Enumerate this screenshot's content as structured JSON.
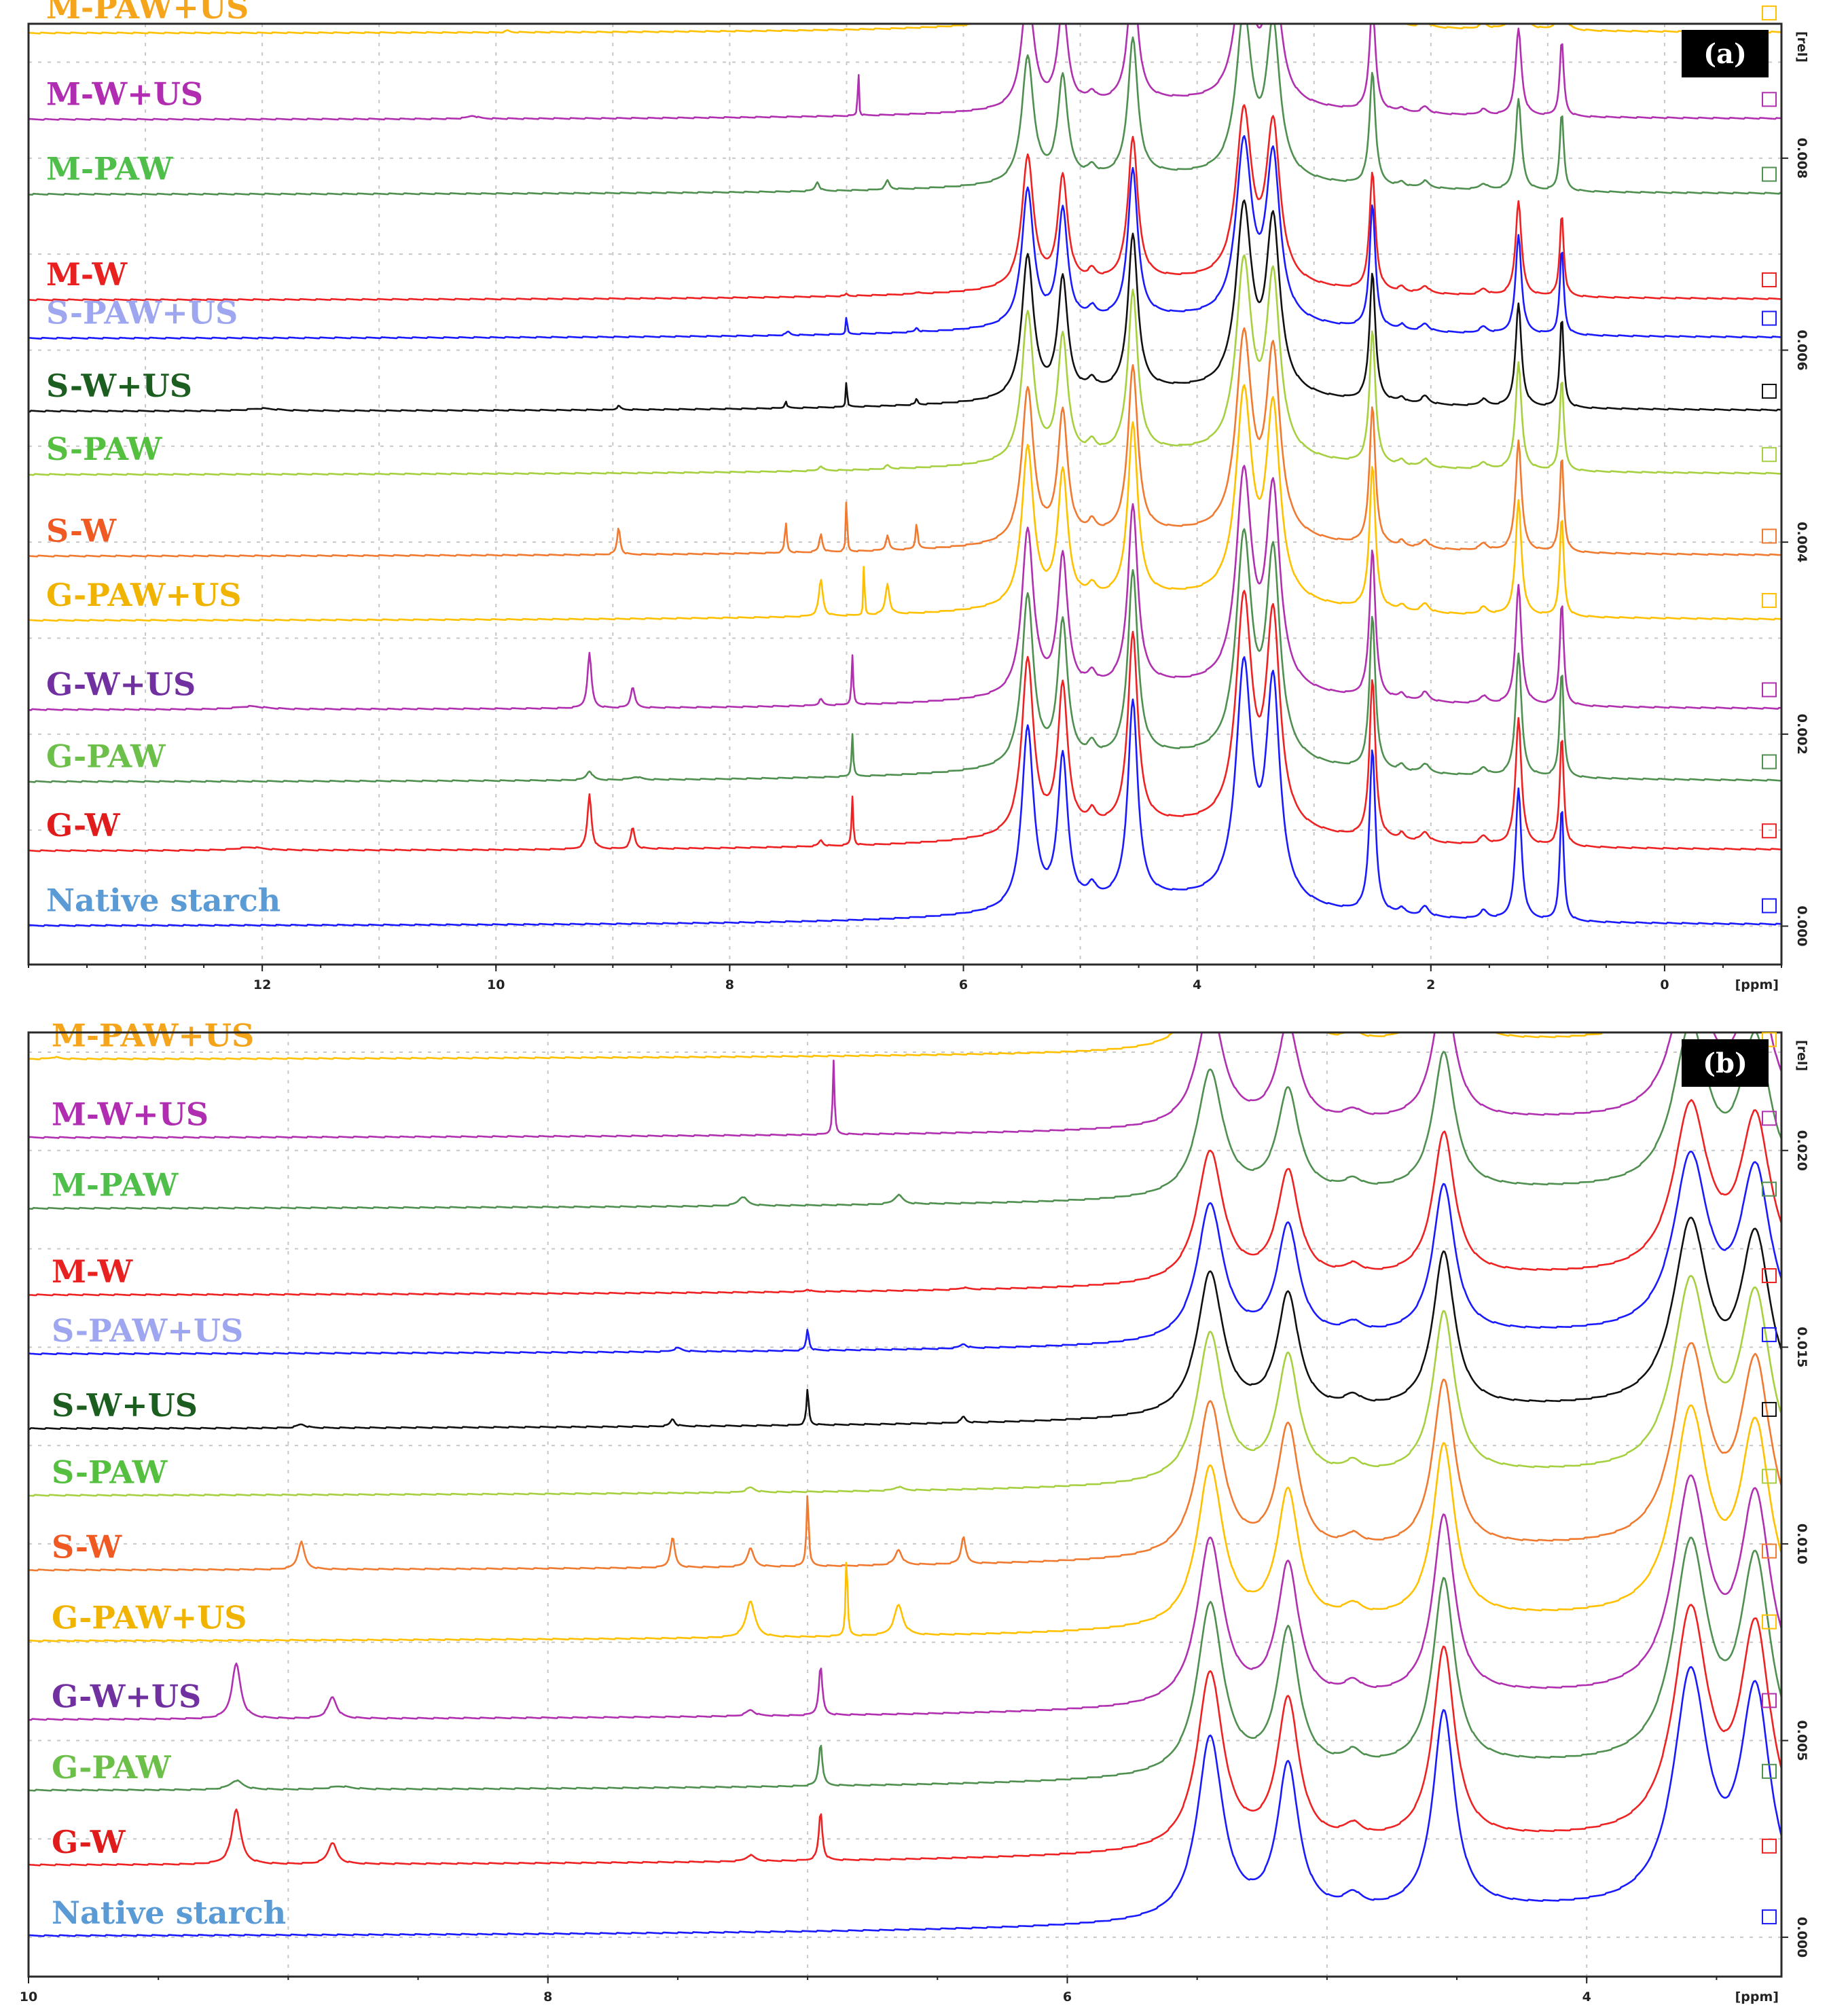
{
  "chart_data": [
    {
      "type": "line",
      "panel_label": "(a)",
      "xlabel": "[ppm]",
      "ylabel": "[rel]",
      "x_ticks": [
        12,
        10,
        8,
        6,
        4,
        2,
        0
      ],
      "x_tick_labels": [
        "12",
        "10",
        "8",
        "6",
        "4",
        "2",
        "0"
      ],
      "xlim": [
        14.0,
        -1.0
      ],
      "y_ticks": [
        0.0,
        0.002,
        0.004,
        0.006,
        0.008
      ],
      "y_tick_labels": [
        "0.000",
        "0.002",
        "0.004",
        "0.006",
        "0.008"
      ],
      "ylim": [
        -0.0004,
        0.0094
      ],
      "grid": true,
      "series": [
        {
          "name": "Native starch",
          "color": "#1a1aff",
          "label_color": "#5b9bd5",
          "offset": 0.0
        },
        {
          "name": "G-W",
          "color": "#ee2222",
          "label_color": "#e01b1b",
          "offset": 0.00078
        },
        {
          "name": "G-PAW",
          "color": "#4f8f4f",
          "label_color": "#6cc04a",
          "offset": 0.0015
        },
        {
          "name": "G-W+US",
          "color": "#b030b0",
          "label_color": "#7030a0",
          "offset": 0.00225
        },
        {
          "name": "G-PAW+US",
          "color": "#ffc000",
          "label_color": "#f0b400",
          "offset": 0.00318
        },
        {
          "name": "S-W",
          "color": "#f07a30",
          "label_color": "#f05a22",
          "offset": 0.00385
        },
        {
          "name": "S-PAW",
          "color": "#a6d040",
          "label_color": "#55c040",
          "offset": 0.0047
        },
        {
          "name": "S-W+US",
          "color": "#111111",
          "label_color": "#1b5e20",
          "offset": 0.00536
        },
        {
          "name": "S-PAW+US",
          "color": "#1a1aff",
          "label_color": "#9da6ee",
          "offset": 0.00612
        },
        {
          "name": "M-W",
          "color": "#ee2222",
          "label_color": "#e82020",
          "offset": 0.00652
        },
        {
          "name": "M-PAW",
          "color": "#4f8f4f",
          "label_color": "#4fbe4a",
          "offset": 0.00762
        },
        {
          "name": "M-W+US",
          "color": "#b030b0",
          "label_color": "#b02cb0",
          "offset": 0.0084
        },
        {
          "name": "M-PAW+US",
          "color": "#ffc000",
          "label_color": "#f5a51c",
          "offset": 0.0093
        }
      ]
    },
    {
      "type": "line",
      "panel_label": "(b)",
      "xlabel": "[ppm]",
      "ylabel": "[rel]",
      "x_ticks": [
        10,
        8,
        6,
        4
      ],
      "x_tick_labels": [
        "10",
        "8",
        "6",
        "4"
      ],
      "xlim": [
        10.0,
        3.25
      ],
      "y_ticks": [
        0.0,
        0.005,
        0.01,
        0.015,
        0.02
      ],
      "y_tick_labels": [
        "0.000",
        "0.005",
        "0.010",
        "0.015",
        "0.020"
      ],
      "ylim": [
        -0.001,
        0.023
      ],
      "grid": true,
      "series": [
        {
          "name": "Native starch",
          "color": "#1a1aff",
          "label_color": "#5b9bd5",
          "offset": 0.0
        },
        {
          "name": "G-W",
          "color": "#ee2222",
          "label_color": "#e01b1b",
          "offset": 0.0018
        },
        {
          "name": "G-PAW",
          "color": "#4f8f4f",
          "label_color": "#6cc04a",
          "offset": 0.0037
        },
        {
          "name": "G-W+US",
          "color": "#b030b0",
          "label_color": "#7030a0",
          "offset": 0.0055
        },
        {
          "name": "G-PAW+US",
          "color": "#ffc000",
          "label_color": "#f0b400",
          "offset": 0.0075
        },
        {
          "name": "S-W",
          "color": "#f07a30",
          "label_color": "#f05a22",
          "offset": 0.0093
        },
        {
          "name": "S-PAW",
          "color": "#a6d040",
          "label_color": "#55c040",
          "offset": 0.0112
        },
        {
          "name": "S-W+US",
          "color": "#111111",
          "label_color": "#1b5e20",
          "offset": 0.0129
        },
        {
          "name": "S-PAW+US",
          "color": "#1a1aff",
          "label_color": "#9da6ee",
          "offset": 0.0148
        },
        {
          "name": "M-W",
          "color": "#ee2222",
          "label_color": "#e82020",
          "offset": 0.0163
        },
        {
          "name": "M-PAW",
          "color": "#4f8f4f",
          "label_color": "#4fbe4a",
          "offset": 0.0185
        },
        {
          "name": "M-W+US",
          "color": "#b030b0",
          "label_color": "#b02cb0",
          "offset": 0.0203
        },
        {
          "name": "M-PAW+US",
          "color": "#ffc000",
          "label_color": "#f5a51c",
          "offset": 0.0223
        }
      ]
    }
  ]
}
